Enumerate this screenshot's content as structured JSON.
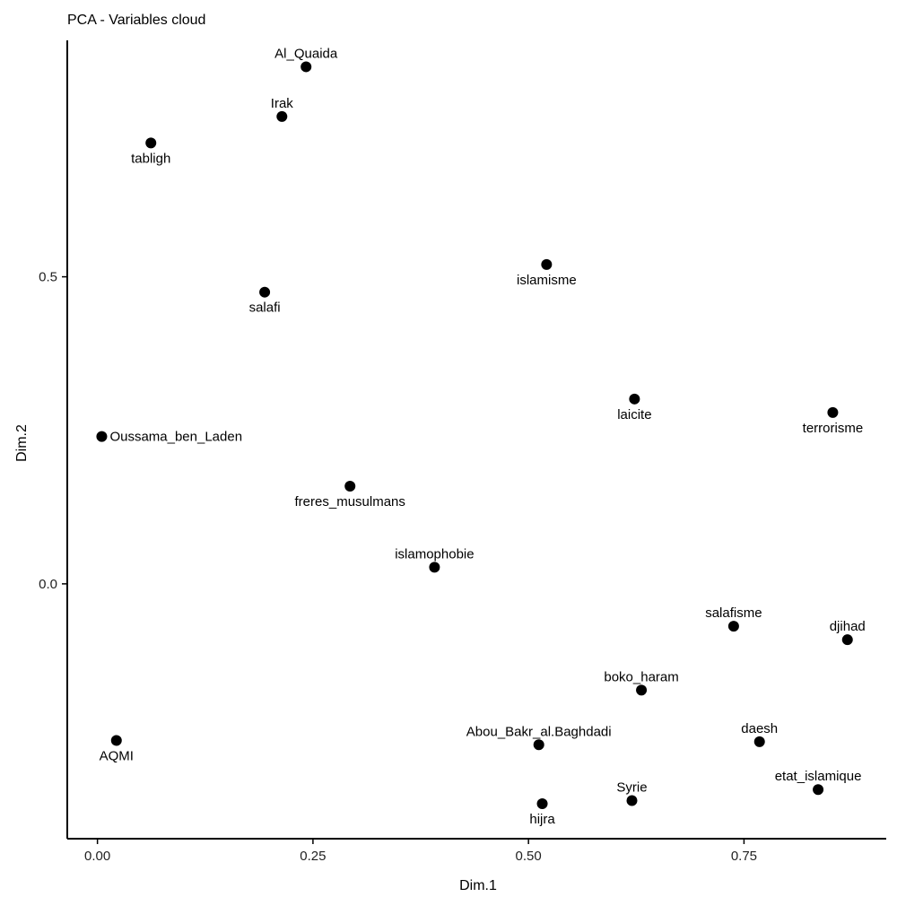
{
  "chart_data": {
    "type": "scatter",
    "title": "PCA - Variables cloud",
    "xlabel": "Dim.1",
    "ylabel": "Dim.2",
    "xlim": [
      -0.035,
      0.915
    ],
    "ylim": [
      -0.415,
      0.885
    ],
    "x_ticks": [
      {
        "value": 0.0,
        "label": "0.00"
      },
      {
        "value": 0.25,
        "label": "0.25"
      },
      {
        "value": 0.5,
        "label": "0.50"
      },
      {
        "value": 0.75,
        "label": "0.75"
      }
    ],
    "y_ticks": [
      {
        "value": 0.0,
        "label": "0.0"
      },
      {
        "value": 0.5,
        "label": "0.5"
      }
    ],
    "grid": false,
    "points": [
      {
        "label": "Al_Quaida",
        "x": 0.242,
        "y": 0.842,
        "label_pos": "above"
      },
      {
        "label": "Irak",
        "x": 0.214,
        "y": 0.761,
        "label_pos": "above"
      },
      {
        "label": "tabligh",
        "x": 0.062,
        "y": 0.718,
        "label_pos": "below"
      },
      {
        "label": "islamisme",
        "x": 0.521,
        "y": 0.52,
        "label_pos": "below"
      },
      {
        "label": "salafi",
        "x": 0.194,
        "y": 0.475,
        "label_pos": "below"
      },
      {
        "label": "laicite",
        "x": 0.623,
        "y": 0.301,
        "label_pos": "below"
      },
      {
        "label": "terrorisme",
        "x": 0.853,
        "y": 0.279,
        "label_pos": "below"
      },
      {
        "label": "Oussama_ben_Laden",
        "x": 0.005,
        "y": 0.24,
        "label_pos": "right"
      },
      {
        "label": "freres_musulmans",
        "x": 0.293,
        "y": 0.159,
        "label_pos": "below"
      },
      {
        "label": "islamophobie",
        "x": 0.391,
        "y": 0.027,
        "label_pos": "above"
      },
      {
        "label": "salafisme",
        "x": 0.738,
        "y": -0.069,
        "label_pos": "above"
      },
      {
        "label": "djihad",
        "x": 0.87,
        "y": -0.091,
        "label_pos": "above"
      },
      {
        "label": "boko_haram",
        "x": 0.631,
        "y": -0.173,
        "label_pos": "above"
      },
      {
        "label": "AQMI",
        "x": 0.022,
        "y": -0.255,
        "label_pos": "below"
      },
      {
        "label": "daesh",
        "x": 0.768,
        "y": -0.257,
        "label_pos": "above"
      },
      {
        "label": "Abou_Bakr_al.Baghdadi",
        "x": 0.512,
        "y": -0.262,
        "label_pos": "above"
      },
      {
        "label": "etat_islamique",
        "x": 0.836,
        "y": -0.335,
        "label_pos": "above"
      },
      {
        "label": "Syrie",
        "x": 0.62,
        "y": -0.353,
        "label_pos": "above"
      },
      {
        "label": "hijra",
        "x": 0.516,
        "y": -0.358,
        "label_pos": "below"
      }
    ]
  }
}
